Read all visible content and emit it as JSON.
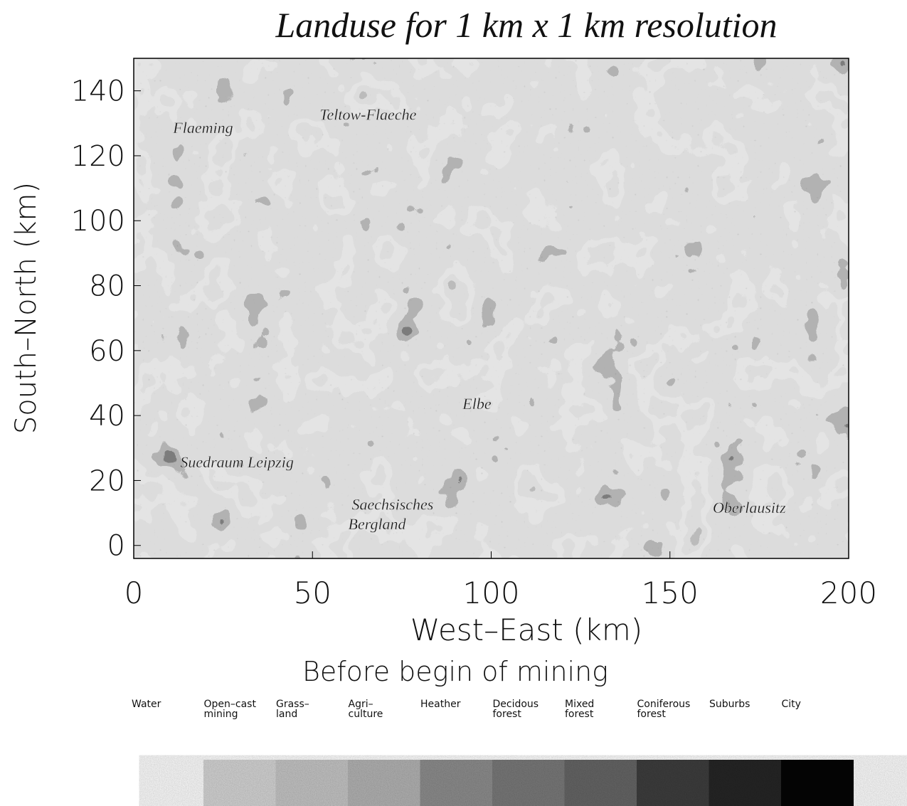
{
  "chart_data": {
    "type": "raster",
    "title": "Landuse for 1 km x 1 km resolution",
    "subtitle": "Before begin of mining",
    "x_label": "West–East  (km)",
    "y_label": "South–North (km)",
    "xlim": [
      0,
      200
    ],
    "xticks": [
      0,
      50,
      100,
      150,
      200
    ],
    "ylim": [
      -4,
      150
    ],
    "yticks": [
      0,
      20,
      40,
      60,
      80,
      100,
      120,
      140
    ],
    "annotations": [
      {
        "text": "Teltow-Flaeche",
        "x": 52,
        "y": 131
      },
      {
        "text": "Flaeming",
        "x": 11,
        "y": 127
      },
      {
        "text": "Elbe",
        "x": 92,
        "y": 42
      },
      {
        "text": "Suedraum Leipzig",
        "x": 13,
        "y": 24
      },
      {
        "text": "Saechsisches",
        "x": 61,
        "y": 11
      },
      {
        "text": "Bergland",
        "x": 60,
        "y": 5
      },
      {
        "text": "Oberlausitz",
        "x": 162,
        "y": 10
      }
    ],
    "legend": [
      {
        "lines": [
          "Water"
        ],
        "color": "#e8e8e8"
      },
      {
        "lines": [
          "Open–cast",
          "mining"
        ],
        "color": "#d6d6d6"
      },
      {
        "lines": [
          "Grass–",
          "land"
        ],
        "color": "#c6c6c6"
      },
      {
        "lines": [
          "Agri–",
          "culture"
        ],
        "color": "#b4b4b4"
      },
      {
        "lines": [
          "Heather"
        ],
        "color": "#8e8e8e"
      },
      {
        "lines": [
          "Decidous",
          "forest"
        ],
        "color": "#7a7a7a"
      },
      {
        "lines": [
          "Mixed",
          "forest"
        ],
        "color": "#666666"
      },
      {
        "lines": [
          "Coniferous",
          "forest"
        ],
        "color": "#3e3e3e"
      },
      {
        "lines": [
          "Suburbs"
        ],
        "color": "#262626"
      },
      {
        "lines": [
          "City"
        ],
        "color": "#050505"
      }
    ]
  }
}
